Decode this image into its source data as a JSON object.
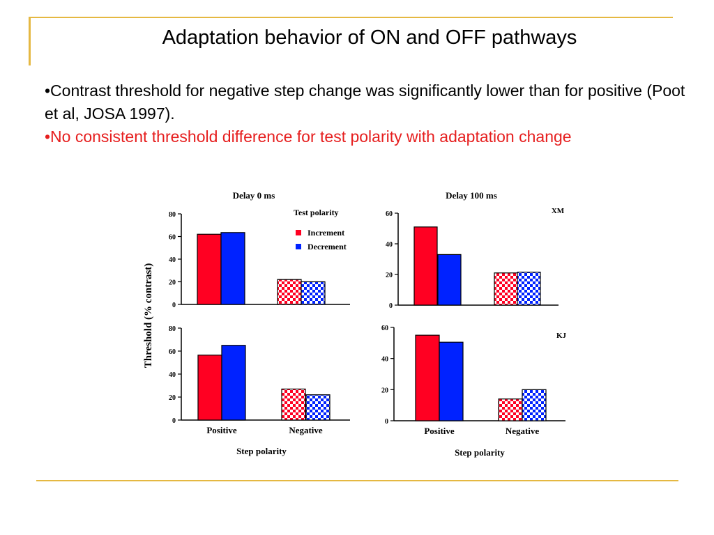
{
  "slide": {
    "title": "Adaptation behavior of ON and OFF pathways",
    "bullets": [
      "•Contrast threshold for negative step change was significantly lower than for positive (Poot et al, JOSA 1997).",
      "•No consistent threshold difference for test polarity with adaptation change"
    ]
  },
  "colors": {
    "accent": "#e5b842",
    "increment": "#ff0022",
    "decrement": "#0022ff",
    "bullet_highlight": "#e61e1e"
  },
  "figure": {
    "ylabel": "Threshold (% contrast)",
    "xlabel": "Step polarity",
    "legend_title": "Test polarity"
  },
  "chart_data": [
    {
      "type": "bar",
      "title": "Delay 0 ms",
      "subject": "",
      "categories": [
        "Positive",
        "Negative"
      ],
      "series": [
        {
          "name": "Increment",
          "values": [
            62,
            22
          ]
        },
        {
          "name": "Decrement",
          "values": [
            63.5,
            20
          ]
        }
      ],
      "ylim": [
        0,
        80
      ],
      "yticks": [
        0,
        20,
        40,
        60,
        80
      ],
      "show_xticklabels": false,
      "legend": "top-right"
    },
    {
      "type": "bar",
      "title": "Delay 100 ms",
      "subject": "XM",
      "categories": [
        "Positive",
        "Negative"
      ],
      "series": [
        {
          "name": "Increment",
          "values": [
            51,
            21
          ]
        },
        {
          "name": "Decrement",
          "values": [
            33,
            21.5
          ]
        }
      ],
      "ylim": [
        0,
        60
      ],
      "yticks": [
        0,
        20,
        40,
        60
      ],
      "show_xticklabels": false
    },
    {
      "type": "bar",
      "title": "",
      "subject": "",
      "categories": [
        "Positive",
        "Negative"
      ],
      "series": [
        {
          "name": "Increment",
          "values": [
            56.5,
            27
          ]
        },
        {
          "name": "Decrement",
          "values": [
            65,
            22
          ]
        }
      ],
      "ylim": [
        0,
        80
      ],
      "yticks": [
        0,
        20,
        40,
        60,
        80
      ],
      "show_xticklabels": true
    },
    {
      "type": "bar",
      "title": "",
      "subject": "KJ",
      "categories": [
        "Positive",
        "Negative"
      ],
      "series": [
        {
          "name": "Increment",
          "values": [
            55,
            14
          ]
        },
        {
          "name": "Decrement",
          "values": [
            50.5,
            20
          ]
        }
      ],
      "ylim": [
        0,
        60
      ],
      "yticks": [
        0,
        20,
        40,
        60
      ],
      "show_xticklabels": true
    }
  ]
}
